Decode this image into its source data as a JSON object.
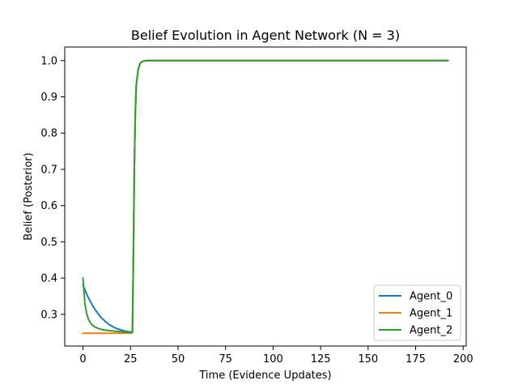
{
  "chart_data": {
    "type": "line",
    "title": "Belief Evolution in Agent Network (N = 3)",
    "xlabel": "Time (Evidence Updates)",
    "ylabel": "Belief (Posterior)",
    "xlim": [
      -9.6,
      201.6
    ],
    "ylim": [
      0.2125,
      1.0375
    ],
    "xticks": [
      0,
      25,
      50,
      75,
      100,
      125,
      150,
      175,
      200
    ],
    "yticks": [
      0.3,
      0.4,
      0.5,
      0.6,
      0.7,
      0.8,
      0.9,
      1.0
    ],
    "ytick_labels": [
      "0.3",
      "0.4",
      "0.5",
      "0.6",
      "0.7",
      "0.8",
      "0.9",
      "1.0"
    ],
    "grid": false,
    "legend_position": "lower-right",
    "series": [
      {
        "name": "Agent_0",
        "color": "#1f77b4",
        "x": [
          0,
          2,
          4,
          6,
          8,
          10,
          12,
          14,
          16,
          18,
          20,
          22,
          24,
          26,
          26.5,
          27,
          27.5,
          28,
          29,
          30,
          31,
          32,
          34,
          40,
          192
        ],
        "y": [
          0.38,
          0.355,
          0.334,
          0.316,
          0.301,
          0.289,
          0.279,
          0.271,
          0.265,
          0.26,
          0.257,
          0.254,
          0.252,
          0.251,
          0.45,
          0.7,
          0.85,
          0.93,
          0.975,
          0.992,
          0.997,
          0.999,
          1.0,
          1.0,
          1.0
        ]
      },
      {
        "name": "Agent_1",
        "color": "#ff7f0e",
        "x": [
          0,
          5,
          10,
          15,
          20,
          25,
          26,
          26.5,
          27,
          27.5,
          28,
          29,
          30,
          31,
          32,
          34,
          40,
          192
        ],
        "y": [
          0.248,
          0.248,
          0.248,
          0.248,
          0.248,
          0.248,
          0.249,
          0.45,
          0.7,
          0.85,
          0.93,
          0.975,
          0.992,
          0.997,
          0.999,
          1.0,
          1.0,
          1.0
        ]
      },
      {
        "name": "Agent_2",
        "color": "#2ca02c",
        "x": [
          0,
          1,
          2,
          3,
          4,
          5,
          6,
          8,
          10,
          12,
          14,
          16,
          18,
          20,
          22,
          24,
          26,
          26.5,
          27,
          27.5,
          28,
          29,
          30,
          31,
          32,
          34,
          40,
          192
        ],
        "y": [
          0.4,
          0.33,
          0.3,
          0.285,
          0.276,
          0.27,
          0.266,
          0.261,
          0.258,
          0.256,
          0.255,
          0.254,
          0.253,
          0.252,
          0.251,
          0.25,
          0.25,
          0.45,
          0.7,
          0.85,
          0.93,
          0.975,
          0.992,
          0.997,
          0.999,
          1.0,
          1.0,
          1.0
        ]
      }
    ]
  }
}
